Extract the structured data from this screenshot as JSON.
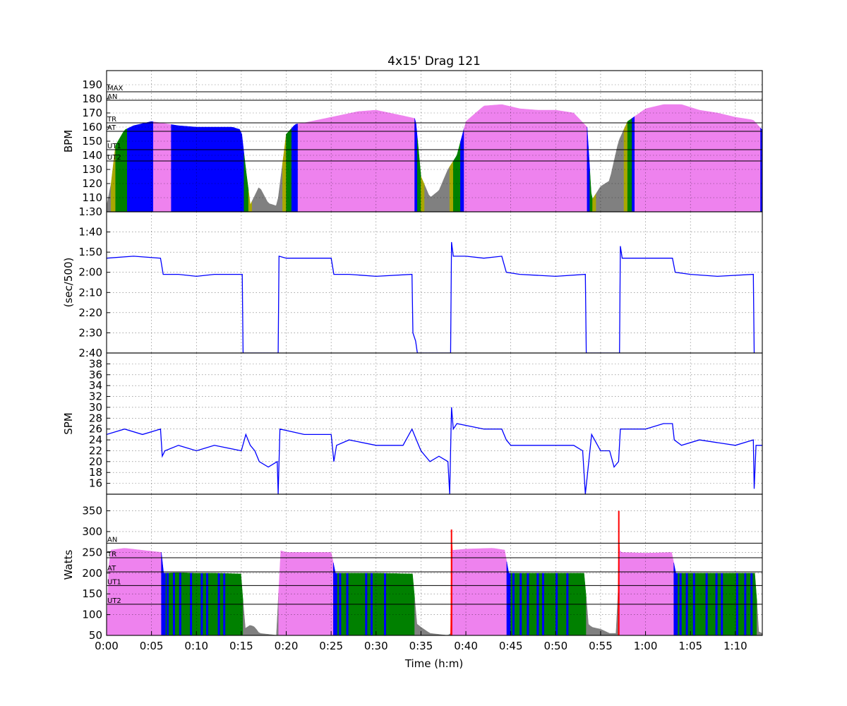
{
  "chart_data": {
    "type": "area",
    "title": "4x15' Drag 121",
    "xlabel": "Time (h:m)",
    "x_unit": "minutes",
    "xlim": [
      0,
      73
    ],
    "x_ticks": [
      {
        "v": 0,
        "label": "0:00"
      },
      {
        "v": 5,
        "label": "0:05"
      },
      {
        "v": 10,
        "label": "0:10"
      },
      {
        "v": 15,
        "label": "0:15"
      },
      {
        "v": 20,
        "label": "0:20"
      },
      {
        "v": 25,
        "label": "0:25"
      },
      {
        "v": 30,
        "label": "0:30"
      },
      {
        "v": 35,
        "label": "0:35"
      },
      {
        "v": 40,
        "label": "0:40"
      },
      {
        "v": 45,
        "label": "0:45"
      },
      {
        "v": 50,
        "label": "0:50"
      },
      {
        "v": 55,
        "label": "0:55"
      },
      {
        "v": 60,
        "label": "1:00"
      },
      {
        "v": 65,
        "label": "1:05"
      },
      {
        "v": 70,
        "label": "1:10"
      }
    ],
    "zone_colors": {
      "rest": "#808080",
      "ut2": "#a8a800",
      "ut1": "#008000",
      "at": "#0000ff",
      "tr": "#ee82ee"
    },
    "panels": [
      {
        "id": "hr",
        "ylabel": "BPM",
        "ylim": [
          100,
          200
        ],
        "y_ticks": [
          {
            "v": 110,
            "label": "110"
          },
          {
            "v": 120,
            "label": "120"
          },
          {
            "v": 130,
            "label": "130"
          },
          {
            "v": 140,
            "label": "140"
          },
          {
            "v": 150,
            "label": "150"
          },
          {
            "v": 160,
            "label": "160"
          },
          {
            "v": 170,
            "label": "170"
          },
          {
            "v": 180,
            "label": "180"
          },
          {
            "v": 190,
            "label": "190"
          }
        ],
        "zones": [
          {
            "label": "MAX",
            "value": 185
          },
          {
            "label": "AN",
            "value": 179
          },
          {
            "label": "TR",
            "value": 163
          },
          {
            "label": "AT",
            "value": 157
          },
          {
            "label": "UT1",
            "value": 144
          },
          {
            "label": "UT2",
            "value": 136
          }
        ],
        "series": {
          "x": [
            0,
            0.5,
            1,
            2,
            3,
            5,
            7,
            8,
            10,
            12,
            14,
            15,
            15.5,
            16,
            17,
            18,
            19,
            20,
            21,
            22,
            25,
            28,
            30,
            33,
            34.4,
            35,
            36,
            37,
            38,
            39,
            40,
            42,
            44,
            46,
            48,
            50,
            52,
            53.5,
            54,
            55,
            56,
            57,
            58,
            60,
            62,
            64,
            66,
            68,
            70,
            72,
            73
          ],
          "y": [
            104,
            120,
            147,
            158,
            161,
            164,
            162,
            161,
            160,
            160,
            160,
            158,
            130,
            105,
            118,
            106,
            104,
            155,
            162,
            163,
            167,
            171,
            172,
            168,
            166,
            125,
            110,
            115,
            130,
            140,
            164,
            175,
            176,
            173,
            172,
            172,
            170,
            160,
            108,
            118,
            122,
            150,
            164,
            173,
            176,
            176,
            172,
            170,
            167,
            165,
            158
          ]
        },
        "zone_segments": [
          {
            "from": 0,
            "to": 0.5,
            "zone": "rest"
          },
          {
            "from": 0.5,
            "to": 1.0,
            "zone": "ut2"
          },
          {
            "from": 1.0,
            "to": 2.3,
            "zone": "ut1"
          },
          {
            "from": 2.3,
            "to": 5.2,
            "zone": "at"
          },
          {
            "from": 5.2,
            "to": 7.2,
            "zone": "tr"
          },
          {
            "from": 7.2,
            "to": 15.3,
            "zone": "at"
          },
          {
            "from": 15.3,
            "to": 15.8,
            "zone": "ut1"
          },
          {
            "from": 15.8,
            "to": 16.2,
            "zone": "ut2"
          },
          {
            "from": 16.2,
            "to": 19.6,
            "zone": "rest"
          },
          {
            "from": 19.6,
            "to": 20.0,
            "zone": "ut2"
          },
          {
            "from": 20.0,
            "to": 20.6,
            "zone": "ut1"
          },
          {
            "from": 20.6,
            "to": 21.3,
            "zone": "at"
          },
          {
            "from": 21.3,
            "to": 34.3,
            "zone": "tr"
          },
          {
            "from": 34.3,
            "to": 34.6,
            "zone": "at"
          },
          {
            "from": 34.6,
            "to": 35.0,
            "zone": "ut1"
          },
          {
            "from": 35.0,
            "to": 35.4,
            "zone": "ut2"
          },
          {
            "from": 35.4,
            "to": 38.2,
            "zone": "rest"
          },
          {
            "from": 38.2,
            "to": 38.6,
            "zone": "ut2"
          },
          {
            "from": 38.6,
            "to": 39.4,
            "zone": "ut1"
          },
          {
            "from": 39.4,
            "to": 39.8,
            "zone": "at"
          },
          {
            "from": 39.8,
            "to": 53.5,
            "zone": "tr"
          },
          {
            "from": 53.5,
            "to": 53.8,
            "zone": "at"
          },
          {
            "from": 53.8,
            "to": 54.1,
            "zone": "ut1"
          },
          {
            "from": 54.1,
            "to": 54.5,
            "zone": "ut2"
          },
          {
            "from": 54.5,
            "to": 57.6,
            "zone": "rest"
          },
          {
            "from": 57.6,
            "to": 58.0,
            "zone": "ut2"
          },
          {
            "from": 58.0,
            "to": 58.5,
            "zone": "ut1"
          },
          {
            "from": 58.5,
            "to": 58.8,
            "zone": "at"
          },
          {
            "from": 58.8,
            "to": 72.8,
            "zone": "tr"
          },
          {
            "from": 72.8,
            "to": 73,
            "zone": "at"
          }
        ]
      },
      {
        "id": "pace",
        "ylabel": "(sec/500)",
        "ylim": [
          90,
          160
        ],
        "invert": true,
        "y_ticks": [
          {
            "v": 90,
            "label": "1:30"
          },
          {
            "v": 100,
            "label": "1:40"
          },
          {
            "v": 110,
            "label": "1:50"
          },
          {
            "v": 120,
            "label": "2:00"
          },
          {
            "v": 130,
            "label": "2:10"
          },
          {
            "v": 140,
            "label": "2:20"
          },
          {
            "v": 150,
            "label": "2:30"
          },
          {
            "v": 160,
            "label": "2:40"
          }
        ],
        "series": {
          "x": [
            0,
            3,
            6,
            6.3,
            8,
            10,
            12,
            14,
            15.1,
            15.2,
            19.1,
            19.2,
            20,
            22,
            25,
            25.3,
            27,
            30,
            34,
            34.1,
            34.4,
            34.6,
            38.3,
            38.4,
            38.6,
            40,
            42,
            44,
            44.5,
            46,
            50,
            53.3,
            53.4,
            57.1,
            57.2,
            57.4,
            60,
            63,
            63.3,
            65,
            68,
            72,
            72.1
          ],
          "y": [
            113,
            112,
            113,
            121,
            121,
            122,
            121,
            121,
            121,
            160,
            160,
            112,
            113,
            113,
            113,
            121,
            121,
            122,
            121,
            150,
            154,
            160,
            160,
            105,
            112,
            112,
            113,
            112,
            120,
            121,
            122,
            121,
            160,
            160,
            107,
            113,
            113,
            113,
            120,
            121,
            122,
            121,
            160
          ]
        }
      },
      {
        "id": "spm",
        "ylabel": "SPM",
        "ylim": [
          14,
          40
        ],
        "y_ticks": [
          {
            "v": 16,
            "label": "16"
          },
          {
            "v": 18,
            "label": "18"
          },
          {
            "v": 20,
            "label": "20"
          },
          {
            "v": 22,
            "label": "22"
          },
          {
            "v": 24,
            "label": "24"
          },
          {
            "v": 26,
            "label": "26"
          },
          {
            "v": 28,
            "label": "28"
          },
          {
            "v": 30,
            "label": "30"
          },
          {
            "v": 32,
            "label": "32"
          },
          {
            "v": 34,
            "label": "34"
          },
          {
            "v": 36,
            "label": "36"
          },
          {
            "v": 38,
            "label": "38"
          }
        ],
        "series": {
          "x": [
            0,
            2,
            4,
            6,
            6.2,
            6.5,
            8,
            10,
            12,
            15,
            15.5,
            16,
            16.5,
            17,
            18,
            19,
            19.1,
            19.3,
            22,
            25,
            25.3,
            25.6,
            27,
            30,
            33,
            34,
            34.5,
            35,
            36,
            37,
            38,
            38.2,
            38.4,
            38.6,
            39,
            42,
            44,
            44.5,
            45,
            48,
            52,
            53,
            53.3,
            54,
            55,
            56,
            56.5,
            57,
            57.2,
            60,
            62,
            63,
            63.2,
            64,
            66,
            70,
            72,
            72.1,
            72.3,
            73
          ],
          "y": [
            25,
            26,
            25,
            26,
            21,
            22,
            23,
            22,
            23,
            22,
            25,
            23,
            22,
            20,
            19,
            20,
            14,
            26,
            25,
            25,
            20,
            23,
            24,
            23,
            23,
            26,
            24,
            22,
            20,
            21,
            20,
            14,
            30,
            26,
            27,
            26,
            26,
            24,
            23,
            23,
            23,
            22,
            14,
            25,
            22,
            22,
            19,
            20,
            26,
            26,
            27,
            27,
            24,
            23,
            24,
            23,
            24,
            15,
            23,
            23
          ]
        }
      },
      {
        "id": "power",
        "ylabel": "Watts",
        "ylim": [
          50,
          390
        ],
        "y_ticks": [
          {
            "v": 50,
            "label": "50"
          },
          {
            "v": 100,
            "label": "100"
          },
          {
            "v": 150,
            "label": "150"
          },
          {
            "v": 200,
            "label": "200"
          },
          {
            "v": 250,
            "label": "250"
          },
          {
            "v": 300,
            "label": "300"
          },
          {
            "v": 350,
            "label": "350"
          }
        ],
        "zones": [
          {
            "label": "AN",
            "value": 272
          },
          {
            "label": "TR",
            "value": 237
          },
          {
            "label": "AT",
            "value": 203
          },
          {
            "label": "UT1",
            "value": 170
          },
          {
            "label": "UT2",
            "value": 125
          }
        ],
        "series": {
          "x": [
            0,
            0.3,
            2,
            4,
            6.1,
            6.2,
            8,
            10,
            12,
            15.1,
            15.3,
            16,
            16.5,
            17,
            19.1,
            19.2,
            20,
            22,
            25.2,
            25.3,
            27,
            30,
            34.2,
            34.4,
            35,
            36,
            38.0,
            38.3,
            38.35,
            38.5,
            40,
            43,
            44.5,
            44.6,
            48,
            53.3,
            53.5,
            54,
            55,
            56,
            56.9,
            57.05,
            57.1,
            57.3,
            60,
            63.1,
            63.2,
            66,
            70,
            72.3,
            72.5,
            73
          ],
          "y": [
            50,
            255,
            260,
            255,
            250,
            200,
            201,
            200,
            200,
            198,
            65,
            75,
            70,
            55,
            50,
            255,
            250,
            250,
            250,
            200,
            200,
            200,
            198,
            80,
            70,
            55,
            50,
            55,
            305,
            255,
            258,
            260,
            255,
            200,
            200,
            200,
            80,
            70,
            65,
            55,
            55,
            350,
            255,
            250,
            248,
            250,
            200,
            200,
            200,
            200,
            60,
            55
          ]
        },
        "zone_segments": [
          {
            "from": 0,
            "to": 6.1,
            "zone": "tr"
          },
          {
            "from": 6.1,
            "to": 6.6,
            "zone": "at"
          },
          {
            "from": 6.6,
            "to": 15.2,
            "zone": "ut1"
          },
          {
            "from": 15.2,
            "to": 19.15,
            "zone": "rest"
          },
          {
            "from": 19.15,
            "to": 25.25,
            "zone": "tr"
          },
          {
            "from": 25.25,
            "to": 25.7,
            "zone": "at"
          },
          {
            "from": 25.7,
            "to": 34.3,
            "zone": "ut1"
          },
          {
            "from": 34.3,
            "to": 38.3,
            "zone": "rest"
          },
          {
            "from": 38.3,
            "to": 38.5,
            "zone": "spike"
          },
          {
            "from": 38.5,
            "to": 44.55,
            "zone": "tr"
          },
          {
            "from": 44.55,
            "to": 45.0,
            "zone": "at"
          },
          {
            "from": 45.0,
            "to": 53.4,
            "zone": "ut1"
          },
          {
            "from": 53.4,
            "to": 56.95,
            "zone": "rest"
          },
          {
            "from": 56.95,
            "to": 57.1,
            "zone": "spike"
          },
          {
            "from": 57.1,
            "to": 63.15,
            "zone": "tr"
          },
          {
            "from": 63.15,
            "to": 63.6,
            "zone": "at"
          },
          {
            "from": 63.6,
            "to": 72.4,
            "zone": "ut1"
          },
          {
            "from": 72.4,
            "to": 73,
            "zone": "rest"
          }
        ],
        "at_stripes": [
          6.8,
          7.5,
          8.2,
          9.4,
          10.6,
          11.2,
          12.5,
          13.1,
          26.0,
          26.8,
          28.9,
          29.5,
          31.0,
          45.3,
          46.1,
          46.9,
          48.0,
          48.6,
          50.1,
          51.3,
          63.9,
          64.6,
          65.4,
          66.8,
          67.9,
          68.5,
          70.2,
          71.1,
          71.8
        ]
      }
    ]
  }
}
